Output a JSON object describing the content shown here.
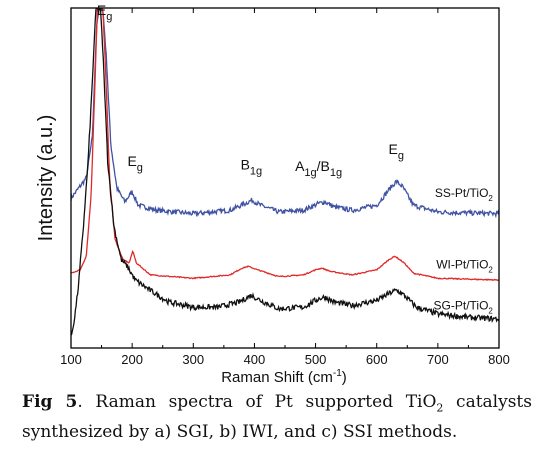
{
  "chart_data": {
    "type": "line",
    "xlabel": "Raman Shift (cm",
    "xlabel_sup": "-1",
    "xlabel_tail": ")",
    "ylabel": "Intensity (a.u.)",
    "xlim": [
      100,
      800
    ],
    "xticks": [
      "100",
      "200",
      "300",
      "400",
      "500",
      "600",
      "700",
      "800"
    ],
    "yaxis_ticks": "none",
    "grid": false,
    "series": [
      {
        "name": "SS-Pt/TiO",
        "name_sub": "2",
        "color": "#3f52a3",
        "points": [
          [
            100,
            0.44
          ],
          [
            125,
            0.5
          ],
          [
            135,
            0.62
          ],
          [
            142,
            0.95
          ],
          [
            146,
            1.0
          ],
          [
            152,
            1.0
          ],
          [
            158,
            0.85
          ],
          [
            165,
            0.6
          ],
          [
            175,
            0.47
          ],
          [
            188,
            0.43
          ],
          [
            200,
            0.46
          ],
          [
            210,
            0.42
          ],
          [
            240,
            0.405
          ],
          [
            300,
            0.395
          ],
          [
            360,
            0.405
          ],
          [
            385,
            0.425
          ],
          [
            396,
            0.435
          ],
          [
            410,
            0.42
          ],
          [
            440,
            0.4
          ],
          [
            480,
            0.405
          ],
          [
            505,
            0.425
          ],
          [
            515,
            0.43
          ],
          [
            530,
            0.415
          ],
          [
            560,
            0.405
          ],
          [
            600,
            0.42
          ],
          [
            622,
            0.47
          ],
          [
            632,
            0.49
          ],
          [
            642,
            0.475
          ],
          [
            660,
            0.42
          ],
          [
            700,
            0.4
          ],
          [
            800,
            0.395
          ]
        ]
      },
      {
        "name": "WI-Pt/TiO",
        "name_sub": "2",
        "color": "#e02a2a",
        "points": [
          [
            100,
            0.22
          ],
          [
            115,
            0.23
          ],
          [
            125,
            0.27
          ],
          [
            133,
            0.45
          ],
          [
            140,
            0.82
          ],
          [
            143,
            1.0
          ],
          [
            152,
            1.0
          ],
          [
            157,
            0.8
          ],
          [
            163,
            0.5
          ],
          [
            172,
            0.32
          ],
          [
            185,
            0.26
          ],
          [
            195,
            0.25
          ],
          [
            201,
            0.285
          ],
          [
            207,
            0.25
          ],
          [
            230,
            0.215
          ],
          [
            300,
            0.205
          ],
          [
            360,
            0.215
          ],
          [
            380,
            0.235
          ],
          [
            390,
            0.24
          ],
          [
            405,
            0.23
          ],
          [
            440,
            0.21
          ],
          [
            480,
            0.215
          ],
          [
            500,
            0.23
          ],
          [
            510,
            0.235
          ],
          [
            525,
            0.225
          ],
          [
            560,
            0.215
          ],
          [
            600,
            0.23
          ],
          [
            620,
            0.26
          ],
          [
            630,
            0.27
          ],
          [
            645,
            0.25
          ],
          [
            660,
            0.22
          ],
          [
            700,
            0.205
          ],
          [
            800,
            0.2
          ]
        ]
      },
      {
        "name": "SG-Pt/TiO",
        "name_sub": "2",
        "color": "#111111",
        "points": [
          [
            100,
            0.03
          ],
          [
            106,
            0.09
          ],
          [
            112,
            0.18
          ],
          [
            120,
            0.35
          ],
          [
            128,
            0.55
          ],
          [
            134,
            0.75
          ],
          [
            138,
            0.9
          ],
          [
            141,
            1.0
          ],
          [
            148,
            1.0
          ],
          [
            152,
            0.88
          ],
          [
            160,
            0.55
          ],
          [
            170,
            0.36
          ],
          [
            182,
            0.26
          ],
          [
            192,
            0.24
          ],
          [
            205,
            0.2
          ],
          [
            225,
            0.175
          ],
          [
            260,
            0.135
          ],
          [
            300,
            0.12
          ],
          [
            340,
            0.12
          ],
          [
            375,
            0.135
          ],
          [
            395,
            0.155
          ],
          [
            410,
            0.14
          ],
          [
            440,
            0.115
          ],
          [
            480,
            0.12
          ],
          [
            505,
            0.145
          ],
          [
            515,
            0.15
          ],
          [
            530,
            0.135
          ],
          [
            560,
            0.125
          ],
          [
            600,
            0.14
          ],
          [
            620,
            0.16
          ],
          [
            632,
            0.17
          ],
          [
            645,
            0.155
          ],
          [
            665,
            0.12
          ],
          [
            700,
            0.1
          ],
          [
            750,
            0.09
          ],
          [
            800,
            0.085
          ]
        ]
      }
    ],
    "annotations": [
      {
        "base": "E",
        "sub": "g",
        "x": 155,
        "y": 0.98
      },
      {
        "base": "E",
        "sub": "g",
        "x": 205,
        "y": 0.535
      },
      {
        "base": "B",
        "sub": "1g",
        "x": 395,
        "y": 0.525
      },
      {
        "base": "A",
        "sub": "1g",
        "x": 505,
        "y": 0.52,
        "base2": "/B",
        "sub2": "1g"
      },
      {
        "base": "E",
        "sub": "g",
        "x": 632,
        "y": 0.57
      }
    ]
  },
  "caption": {
    "label": "Fig 5",
    "text_a": ". Raman spectra of Pt supported TiO",
    "sub": "2",
    "text_b": " catalysts synthesized by a) SGI, b) IWI, and c) SSI methods."
  }
}
